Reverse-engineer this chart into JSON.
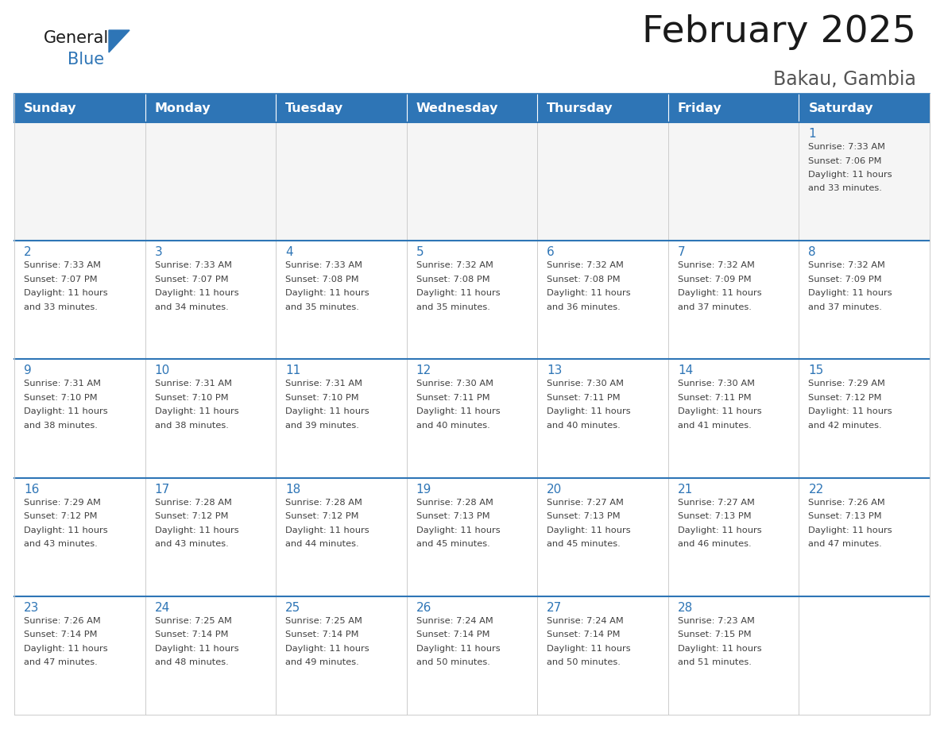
{
  "title": "February 2025",
  "subtitle": "Bakau, Gambia",
  "days_of_week": [
    "Sunday",
    "Monday",
    "Tuesday",
    "Wednesday",
    "Thursday",
    "Friday",
    "Saturday"
  ],
  "header_bg": "#2E75B6",
  "header_text": "#FFFFFF",
  "cell_bg": "#FFFFFF",
  "cell_bg_alt": "#F5F5F5",
  "border_color": "#CCCCCC",
  "week_border_color": "#2E75B6",
  "day_num_color": "#2E75B6",
  "info_text_color": "#404040",
  "title_color": "#1a1a1a",
  "subtitle_color": "#555555",
  "logo_general_color": "#1a1a1a",
  "logo_blue_color": "#2E75B6",
  "weeks": [
    [
      {
        "day": null,
        "info": null
      },
      {
        "day": null,
        "info": null
      },
      {
        "day": null,
        "info": null
      },
      {
        "day": null,
        "info": null
      },
      {
        "day": null,
        "info": null
      },
      {
        "day": null,
        "info": null
      },
      {
        "day": 1,
        "info": "Sunrise: 7:33 AM\nSunset: 7:06 PM\nDaylight: 11 hours\nand 33 minutes."
      }
    ],
    [
      {
        "day": 2,
        "info": "Sunrise: 7:33 AM\nSunset: 7:07 PM\nDaylight: 11 hours\nand 33 minutes."
      },
      {
        "day": 3,
        "info": "Sunrise: 7:33 AM\nSunset: 7:07 PM\nDaylight: 11 hours\nand 34 minutes."
      },
      {
        "day": 4,
        "info": "Sunrise: 7:33 AM\nSunset: 7:08 PM\nDaylight: 11 hours\nand 35 minutes."
      },
      {
        "day": 5,
        "info": "Sunrise: 7:32 AM\nSunset: 7:08 PM\nDaylight: 11 hours\nand 35 minutes."
      },
      {
        "day": 6,
        "info": "Sunrise: 7:32 AM\nSunset: 7:08 PM\nDaylight: 11 hours\nand 36 minutes."
      },
      {
        "day": 7,
        "info": "Sunrise: 7:32 AM\nSunset: 7:09 PM\nDaylight: 11 hours\nand 37 minutes."
      },
      {
        "day": 8,
        "info": "Sunrise: 7:32 AM\nSunset: 7:09 PM\nDaylight: 11 hours\nand 37 minutes."
      }
    ],
    [
      {
        "day": 9,
        "info": "Sunrise: 7:31 AM\nSunset: 7:10 PM\nDaylight: 11 hours\nand 38 minutes."
      },
      {
        "day": 10,
        "info": "Sunrise: 7:31 AM\nSunset: 7:10 PM\nDaylight: 11 hours\nand 38 minutes."
      },
      {
        "day": 11,
        "info": "Sunrise: 7:31 AM\nSunset: 7:10 PM\nDaylight: 11 hours\nand 39 minutes."
      },
      {
        "day": 12,
        "info": "Sunrise: 7:30 AM\nSunset: 7:11 PM\nDaylight: 11 hours\nand 40 minutes."
      },
      {
        "day": 13,
        "info": "Sunrise: 7:30 AM\nSunset: 7:11 PM\nDaylight: 11 hours\nand 40 minutes."
      },
      {
        "day": 14,
        "info": "Sunrise: 7:30 AM\nSunset: 7:11 PM\nDaylight: 11 hours\nand 41 minutes."
      },
      {
        "day": 15,
        "info": "Sunrise: 7:29 AM\nSunset: 7:12 PM\nDaylight: 11 hours\nand 42 minutes."
      }
    ],
    [
      {
        "day": 16,
        "info": "Sunrise: 7:29 AM\nSunset: 7:12 PM\nDaylight: 11 hours\nand 43 minutes."
      },
      {
        "day": 17,
        "info": "Sunrise: 7:28 AM\nSunset: 7:12 PM\nDaylight: 11 hours\nand 43 minutes."
      },
      {
        "day": 18,
        "info": "Sunrise: 7:28 AM\nSunset: 7:12 PM\nDaylight: 11 hours\nand 44 minutes."
      },
      {
        "day": 19,
        "info": "Sunrise: 7:28 AM\nSunset: 7:13 PM\nDaylight: 11 hours\nand 45 minutes."
      },
      {
        "day": 20,
        "info": "Sunrise: 7:27 AM\nSunset: 7:13 PM\nDaylight: 11 hours\nand 45 minutes."
      },
      {
        "day": 21,
        "info": "Sunrise: 7:27 AM\nSunset: 7:13 PM\nDaylight: 11 hours\nand 46 minutes."
      },
      {
        "day": 22,
        "info": "Sunrise: 7:26 AM\nSunset: 7:13 PM\nDaylight: 11 hours\nand 47 minutes."
      }
    ],
    [
      {
        "day": 23,
        "info": "Sunrise: 7:26 AM\nSunset: 7:14 PM\nDaylight: 11 hours\nand 47 minutes."
      },
      {
        "day": 24,
        "info": "Sunrise: 7:25 AM\nSunset: 7:14 PM\nDaylight: 11 hours\nand 48 minutes."
      },
      {
        "day": 25,
        "info": "Sunrise: 7:25 AM\nSunset: 7:14 PM\nDaylight: 11 hours\nand 49 minutes."
      },
      {
        "day": 26,
        "info": "Sunrise: 7:24 AM\nSunset: 7:14 PM\nDaylight: 11 hours\nand 50 minutes."
      },
      {
        "day": 27,
        "info": "Sunrise: 7:24 AM\nSunset: 7:14 PM\nDaylight: 11 hours\nand 50 minutes."
      },
      {
        "day": 28,
        "info": "Sunrise: 7:23 AM\nSunset: 7:15 PM\nDaylight: 11 hours\nand 51 minutes."
      },
      {
        "day": null,
        "info": null
      }
    ]
  ]
}
